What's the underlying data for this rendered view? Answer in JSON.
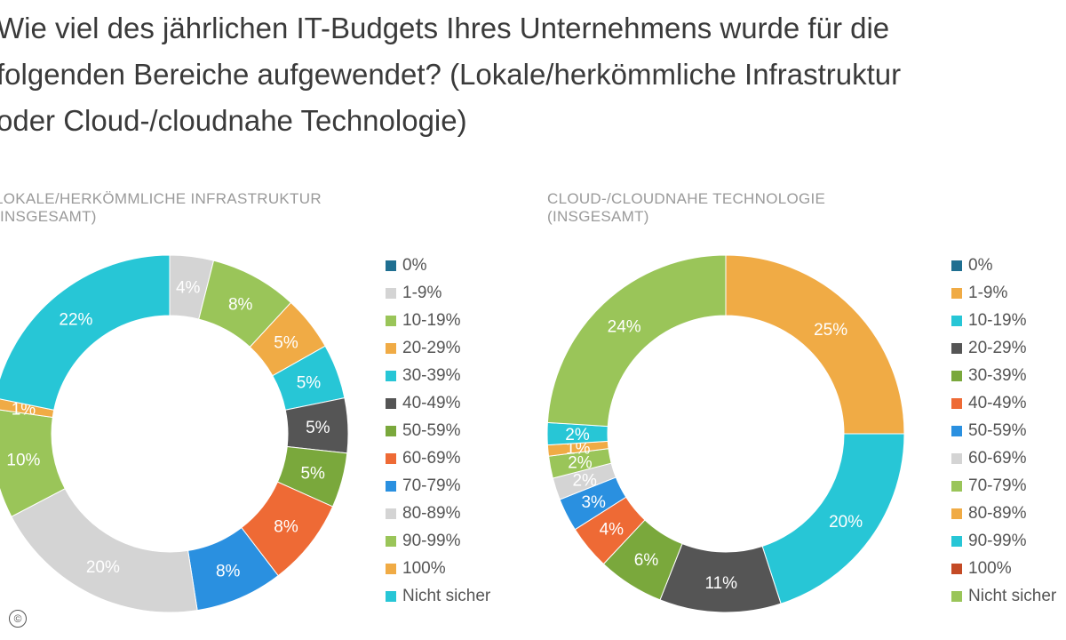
{
  "title": "Wie viel des jährlichen IT-Budgets Ihres Unternehmens wurde für die folgenden Bereiche aufgewendet? (Lokale/herkömmliche Infrastruktur oder Cloud-/cloudnahe Technologie)",
  "copyright_symbol": "©",
  "chart_data": [
    {
      "type": "donut",
      "subtitle": "LOKALE/HERKÖMMLICHE INFRASTRUKTUR (INSGESAMT)",
      "categories": [
        "0%",
        "1-9%",
        "10-19%",
        "20-29%",
        "30-39%",
        "40-49%",
        "50-59%",
        "60-69%",
        "70-79%",
        "80-89%",
        "90-99%",
        "100%",
        "Nicht sicher"
      ],
      "values": [
        0,
        4,
        8,
        5,
        5,
        5,
        5,
        8,
        8,
        20,
        10,
        1,
        22
      ],
      "labels": [
        "",
        "4%",
        "8%",
        "5%",
        "5%",
        "5%",
        "5%",
        "8%",
        "8%",
        "20%",
        "10%",
        "1%",
        "22%"
      ],
      "colors": [
        "#1f6f91",
        "#d4d4d4",
        "#9ac559",
        "#f0ab45",
        "#27c6d6",
        "#555555",
        "#7aa83c",
        "#ee6a35",
        "#2a90e0",
        "#d4d4d4",
        "#9ac559",
        "#f0ab45",
        "#27c6d6"
      ]
    },
    {
      "type": "donut",
      "subtitle": "CLOUD-/CLOUDNAHE TECHNOLOGIE (INSGESAMT)",
      "categories": [
        "0%",
        "1-9%",
        "10-19%",
        "20-29%",
        "30-39%",
        "40-49%",
        "50-59%",
        "60-69%",
        "70-79%",
        "80-89%",
        "90-99%",
        "100%",
        "Nicht sicher"
      ],
      "values": [
        0,
        25,
        20,
        11,
        6,
        4,
        3,
        2,
        2,
        1,
        2,
        0,
        24
      ],
      "labels": [
        "",
        "25%",
        "20%",
        "11%",
        "6%",
        "4%",
        "3%",
        "2%",
        "2%",
        "1%",
        "2%",
        "",
        "24%"
      ],
      "colors": [
        "#1f6f91",
        "#f0ab45",
        "#27c6d6",
        "#555555",
        "#7aa83c",
        "#ee6a35",
        "#2a90e0",
        "#d4d4d4",
        "#9ac559",
        "#f0ab45",
        "#27c6d6",
        "#c44a25",
        "#9ac559"
      ]
    }
  ]
}
